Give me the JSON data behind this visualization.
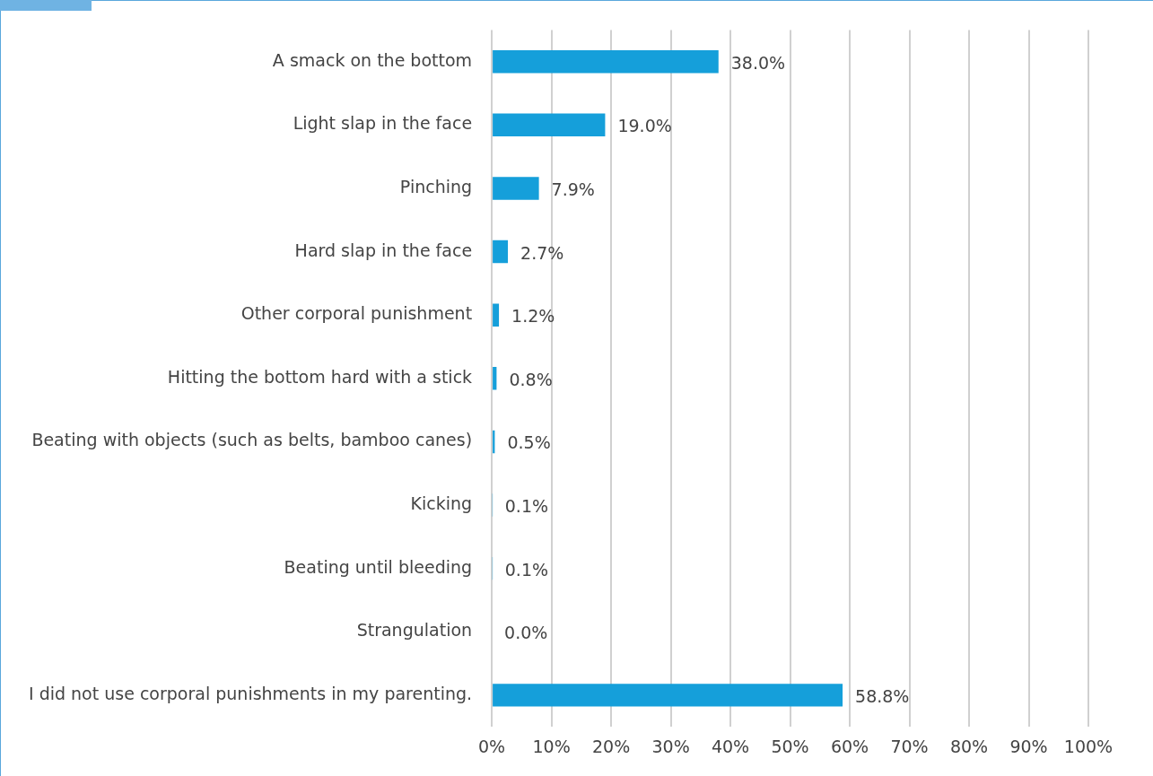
{
  "chart_data": {
    "type": "bar",
    "orientation": "horizontal",
    "categories": [
      "A smack on the bottom",
      "Light slap in the face",
      "Pinching",
      "Hard slap in the face",
      "Other corporal punishment",
      "Hitting the bottom hard with a stick",
      "Beating with objects (such as belts, bamboo canes)",
      "Kicking",
      "Beating until bleeding",
      "Strangulation",
      "I did not use corporal punishments in my parenting."
    ],
    "values": [
      38.0,
      19.0,
      7.9,
      2.7,
      1.2,
      0.8,
      0.5,
      0.1,
      0.1,
      0.0,
      58.8
    ],
    "value_labels": [
      "38.0%",
      "19.0%",
      "7.9%",
      "2.7%",
      "1.2%",
      "0.8%",
      "0.5%",
      "0.1%",
      "0.1%",
      "0.0%",
      "58.8%"
    ],
    "color": "#159fda",
    "xlim": [
      0,
      100
    ],
    "xticks": [
      {
        "value": 0,
        "label": "0%"
      },
      {
        "value": 10,
        "label": "10%"
      },
      {
        "value": 20,
        "label": "20%"
      },
      {
        "value": 30,
        "label": "30%"
      },
      {
        "value": 40,
        "label": "40%"
      },
      {
        "value": 50,
        "label": "50%"
      },
      {
        "value": 60,
        "label": "60%"
      },
      {
        "value": 70,
        "label": "70%"
      },
      {
        "value": 80,
        "label": "80%"
      },
      {
        "value": 90,
        "label": "90%"
      },
      {
        "value": 100,
        "label": "100%"
      }
    ],
    "grid": "x",
    "legend": false
  }
}
